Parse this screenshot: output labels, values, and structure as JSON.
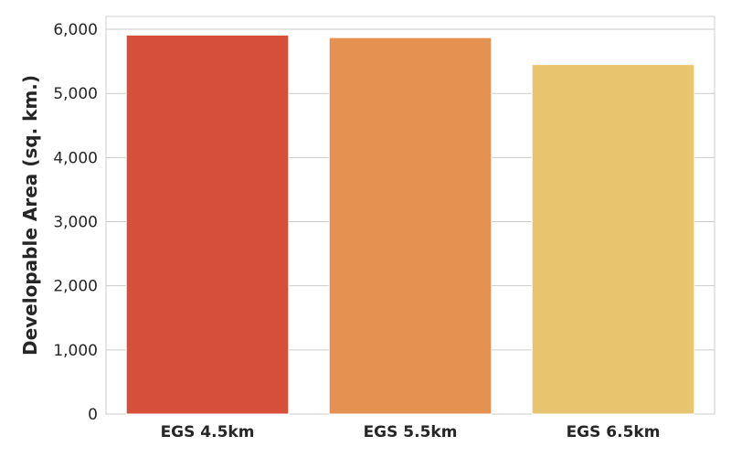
{
  "chart_data": {
    "type": "bar",
    "title": "",
    "xlabel": "",
    "ylabel": "Developable Area (sq. km.)",
    "categories": [
      "EGS 4.5km",
      "EGS 5.5km",
      "EGS 6.5km"
    ],
    "values": [
      5910,
      5870,
      5450
    ],
    "colors": [
      "#d64f3a",
      "#e59152",
      "#e9c46f"
    ],
    "ylim": [
      0,
      6200
    ],
    "yticks": [
      0,
      1000,
      2000,
      3000,
      4000,
      5000,
      6000
    ],
    "ytick_labels": [
      "0",
      "1,000",
      "2,000",
      "3,000",
      "4,000",
      "5,000",
      "6,000"
    ],
    "grid": "horizontal",
    "legend": "none"
  }
}
